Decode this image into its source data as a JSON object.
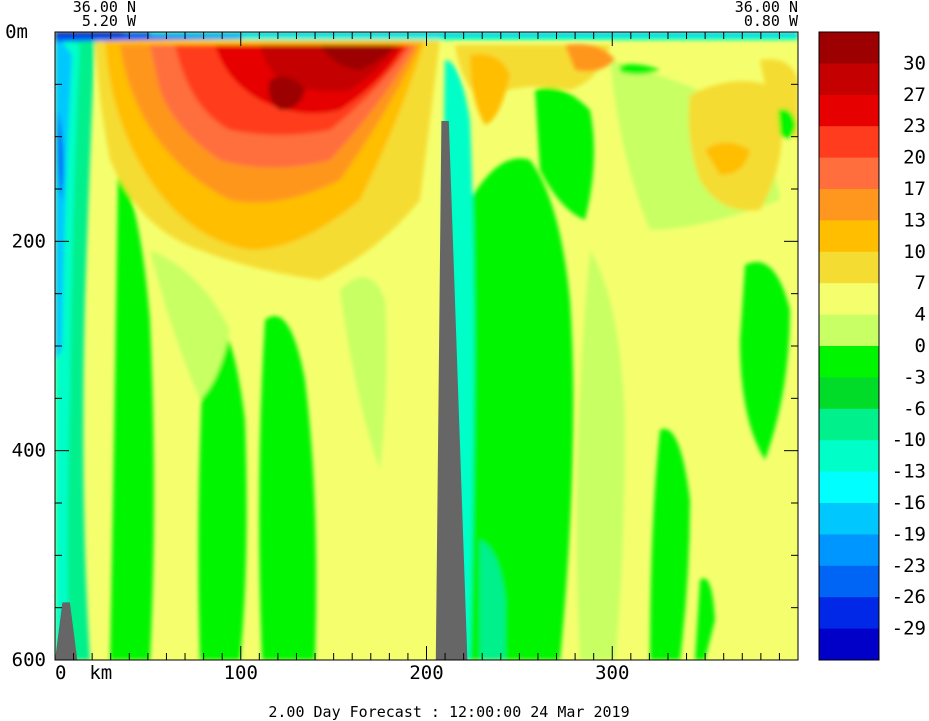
{
  "chart_data": {
    "type": "heatmap",
    "corner_left": {
      "lat": "36.00 N",
      "lon": "5.20 W"
    },
    "corner_right": {
      "lat": "36.00 N",
      "lon": "0.80 W"
    },
    "x_axis": {
      "ticks": [
        0,
        100,
        200,
        300
      ],
      "tick_labels": [
        "0  km",
        "100",
        "200",
        "300"
      ],
      "range": [
        0,
        400
      ]
    },
    "y_axis": {
      "ticks": [
        0,
        200,
        400,
        600
      ],
      "tick_labels": [
        "0m",
        "200",
        "400",
        "600"
      ],
      "range": [
        0,
        600
      ],
      "inverted": true
    },
    "colorbar": {
      "labels": [
        "30",
        "27",
        "23",
        "20",
        "17",
        "13",
        "10",
        "7",
        "4",
        "0",
        "-3",
        "-6",
        "-10",
        "-13",
        "-16",
        "-19",
        "-23",
        "-26",
        "-29"
      ],
      "colors": [
        "#9c0000",
        "#c40000",
        "#e60000",
        "#ff3c1e",
        "#ff6e3c",
        "#ff961e",
        "#ffbe00",
        "#f5dc32",
        "#f5ff6e",
        "#c8ff64",
        "#00f500",
        "#00dc28",
        "#00f08c",
        "#00ffc8",
        "#00ffff",
        "#00c8ff",
        "#0096ff",
        "#0064f5",
        "#0028e6",
        "#0000c8"
      ]
    },
    "terrain": [
      {
        "x": [
          205,
          208,
          212,
          222
        ],
        "y": [
          600,
          85,
          85,
          600
        ],
        "label": "seamount"
      },
      {
        "x": [
          0,
          4,
          8,
          12
        ],
        "y": [
          600,
          545,
          545,
          600
        ],
        "label": "slope"
      }
    ],
    "title": "2.00 Day Forecast : 12:00:00  24 Mar 2019"
  }
}
